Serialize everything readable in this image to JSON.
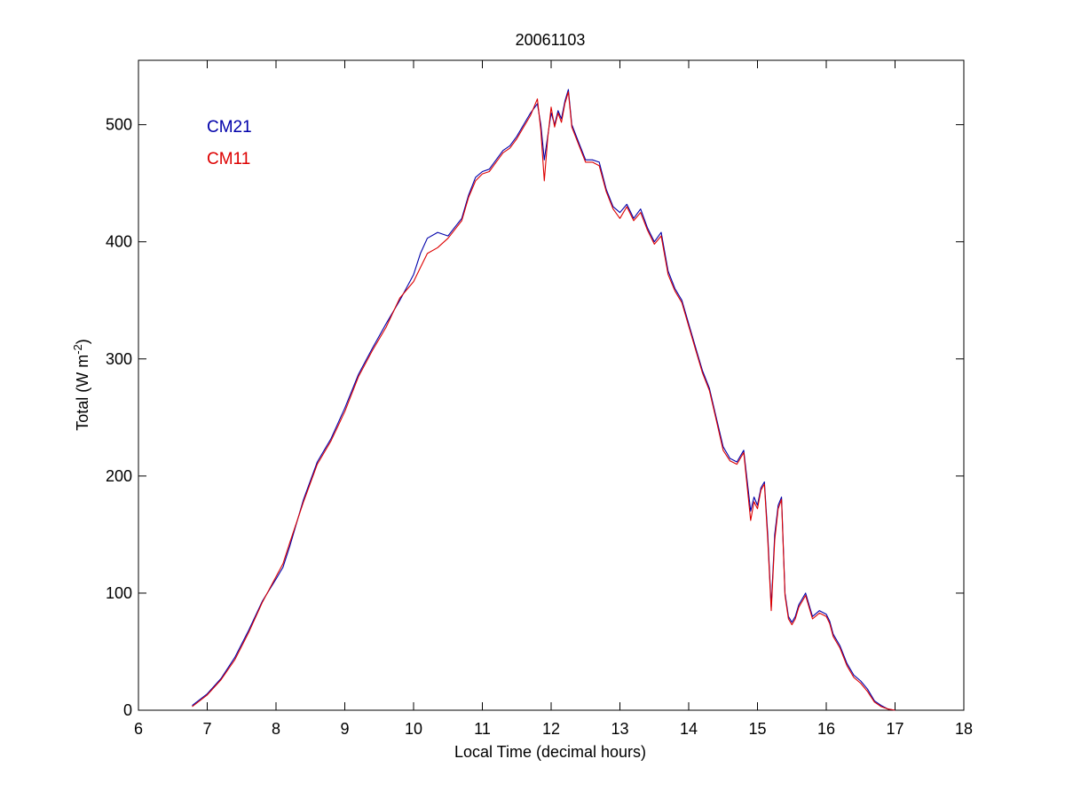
{
  "chart_data": {
    "type": "line",
    "title": "20061103",
    "xlabel": "Local Time (decimal hours)",
    "ylabel": {
      "prefix": "Total (W m",
      "superscript": "-2",
      "suffix": ")"
    },
    "xlim": [
      6,
      18
    ],
    "ylim": [
      0,
      555
    ],
    "xticks": [
      6,
      7,
      8,
      9,
      10,
      11,
      12,
      13,
      14,
      15,
      16,
      17,
      18
    ],
    "yticks": [
      0,
      100,
      200,
      300,
      400,
      500
    ],
    "grid": false,
    "legend_position": "top-left",
    "series": [
      {
        "name": "CM21",
        "color": "#0000aa",
        "x": [
          6.78,
          7.0,
          7.2,
          7.4,
          7.6,
          7.8,
          8.0,
          8.1,
          8.2,
          8.4,
          8.6,
          8.8,
          9.0,
          9.2,
          9.4,
          9.6,
          9.8,
          10.0,
          10.1,
          10.2,
          10.35,
          10.5,
          10.7,
          10.8,
          10.9,
          11.0,
          11.1,
          11.2,
          11.3,
          11.4,
          11.5,
          11.6,
          11.7,
          11.8,
          11.85,
          11.9,
          11.95,
          12.0,
          12.05,
          12.1,
          12.15,
          12.2,
          12.25,
          12.3,
          12.4,
          12.5,
          12.6,
          12.7,
          12.8,
          12.9,
          13.0,
          13.1,
          13.2,
          13.3,
          13.4,
          13.5,
          13.6,
          13.7,
          13.8,
          13.9,
          14.0,
          14.1,
          14.2,
          14.3,
          14.4,
          14.5,
          14.6,
          14.7,
          14.8,
          14.9,
          14.95,
          15.0,
          15.05,
          15.1,
          15.15,
          15.2,
          15.25,
          15.3,
          15.35,
          15.4,
          15.45,
          15.5,
          15.55,
          15.6,
          15.7,
          15.8,
          15.9,
          16.0,
          16.05,
          16.1,
          16.2,
          16.3,
          16.4,
          16.5,
          16.6,
          16.7,
          16.8,
          16.9,
          17.0
        ],
        "values": [
          4,
          14,
          27,
          45,
          68,
          93,
          112,
          122,
          140,
          180,
          212,
          232,
          258,
          287,
          309,
          330,
          350,
          372,
          390,
          403,
          408,
          405,
          420,
          440,
          455,
          460,
          462,
          470,
          478,
          482,
          490,
          500,
          510,
          518,
          500,
          470,
          490,
          510,
          500,
          512,
          505,
          520,
          530,
          500,
          485,
          470,
          470,
          468,
          445,
          430,
          425,
          432,
          420,
          428,
          412,
          400,
          408,
          375,
          360,
          350,
          330,
          310,
          290,
          275,
          250,
          225,
          215,
          212,
          222,
          170,
          182,
          175,
          190,
          195,
          150,
          88,
          150,
          175,
          182,
          100,
          80,
          75,
          80,
          90,
          100,
          80,
          85,
          82,
          76,
          65,
          55,
          40,
          30,
          25,
          18,
          8,
          4,
          1,
          0
        ]
      },
      {
        "name": "CM11",
        "color": "#dd0000",
        "x": [
          6.78,
          7.0,
          7.2,
          7.4,
          7.6,
          7.8,
          8.0,
          8.1,
          8.2,
          8.4,
          8.6,
          8.8,
          9.0,
          9.2,
          9.4,
          9.6,
          9.8,
          10.0,
          10.1,
          10.2,
          10.35,
          10.5,
          10.7,
          10.8,
          10.9,
          11.0,
          11.1,
          11.2,
          11.3,
          11.4,
          11.5,
          11.6,
          11.7,
          11.8,
          11.85,
          11.9,
          11.95,
          12.0,
          12.05,
          12.1,
          12.15,
          12.2,
          12.25,
          12.3,
          12.4,
          12.5,
          12.6,
          12.7,
          12.8,
          12.9,
          13.0,
          13.1,
          13.2,
          13.3,
          13.4,
          13.5,
          13.6,
          13.7,
          13.8,
          13.9,
          14.0,
          14.1,
          14.2,
          14.3,
          14.4,
          14.5,
          14.6,
          14.7,
          14.8,
          14.9,
          14.95,
          15.0,
          15.05,
          15.1,
          15.15,
          15.2,
          15.25,
          15.3,
          15.35,
          15.4,
          15.45,
          15.5,
          15.55,
          15.6,
          15.7,
          15.8,
          15.9,
          16.0,
          16.05,
          16.1,
          16.2,
          16.3,
          16.4,
          16.5,
          16.6,
          16.7,
          16.8,
          16.9,
          17.0
        ],
        "values": [
          3,
          13,
          26,
          43,
          66,
          92,
          114,
          125,
          143,
          178,
          210,
          230,
          255,
          285,
          307,
          327,
          352,
          366,
          378,
          390,
          395,
          403,
          418,
          438,
          452,
          458,
          460,
          468,
          476,
          480,
          488,
          498,
          508,
          522,
          495,
          452,
          488,
          515,
          498,
          510,
          502,
          518,
          528,
          498,
          483,
          468,
          468,
          465,
          443,
          428,
          420,
          430,
          418,
          425,
          410,
          398,
          405,
          372,
          358,
          348,
          328,
          308,
          288,
          273,
          248,
          222,
          213,
          210,
          220,
          162,
          178,
          172,
          188,
          193,
          145,
          85,
          145,
          172,
          180,
          98,
          78,
          73,
          78,
          88,
          98,
          78,
          83,
          80,
          74,
          63,
          53,
          38,
          28,
          23,
          16,
          7,
          3,
          1,
          0
        ]
      }
    ]
  }
}
